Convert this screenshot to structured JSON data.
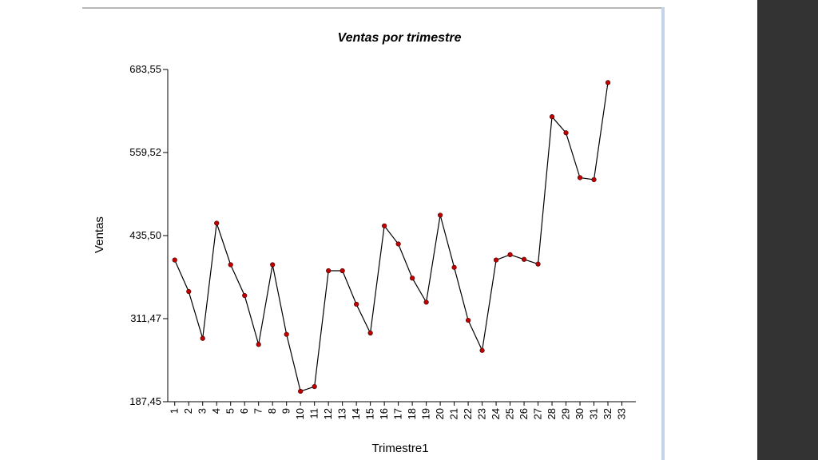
{
  "chart_data": {
    "type": "line",
    "title": "Ventas por trimestre",
    "xlabel": "Trimestre1",
    "ylabel": "Ventas",
    "x": [
      1,
      2,
      3,
      4,
      5,
      6,
      7,
      8,
      9,
      10,
      11,
      12,
      13,
      14,
      15,
      16,
      17,
      18,
      19,
      20,
      21,
      22,
      23,
      24,
      25,
      26,
      27,
      28,
      29,
      30,
      31,
      32
    ],
    "x_ticks": [
      1,
      2,
      3,
      4,
      5,
      6,
      7,
      8,
      9,
      10,
      11,
      12,
      13,
      14,
      15,
      16,
      17,
      18,
      19,
      20,
      21,
      22,
      23,
      24,
      25,
      26,
      27,
      28,
      29,
      30,
      31,
      32,
      33
    ],
    "y": [
      399,
      352,
      282,
      454,
      392,
      346,
      273,
      392,
      288,
      203,
      210,
      383,
      383,
      333,
      290,
      450,
      423,
      372,
      336,
      466,
      388,
      309,
      264,
      399,
      407,
      400,
      393,
      613,
      589,
      522,
      519,
      664
    ],
    "y_ticks": [
      "187,45",
      "311,47",
      "435,50",
      "559,52",
      "683,55"
    ],
    "ylim": [
      187.45,
      683.55
    ],
    "xlim": [
      0.5,
      34
    ],
    "line_color": "#000000",
    "marker_color": "#c00000",
    "grid": false,
    "legend": false
  }
}
